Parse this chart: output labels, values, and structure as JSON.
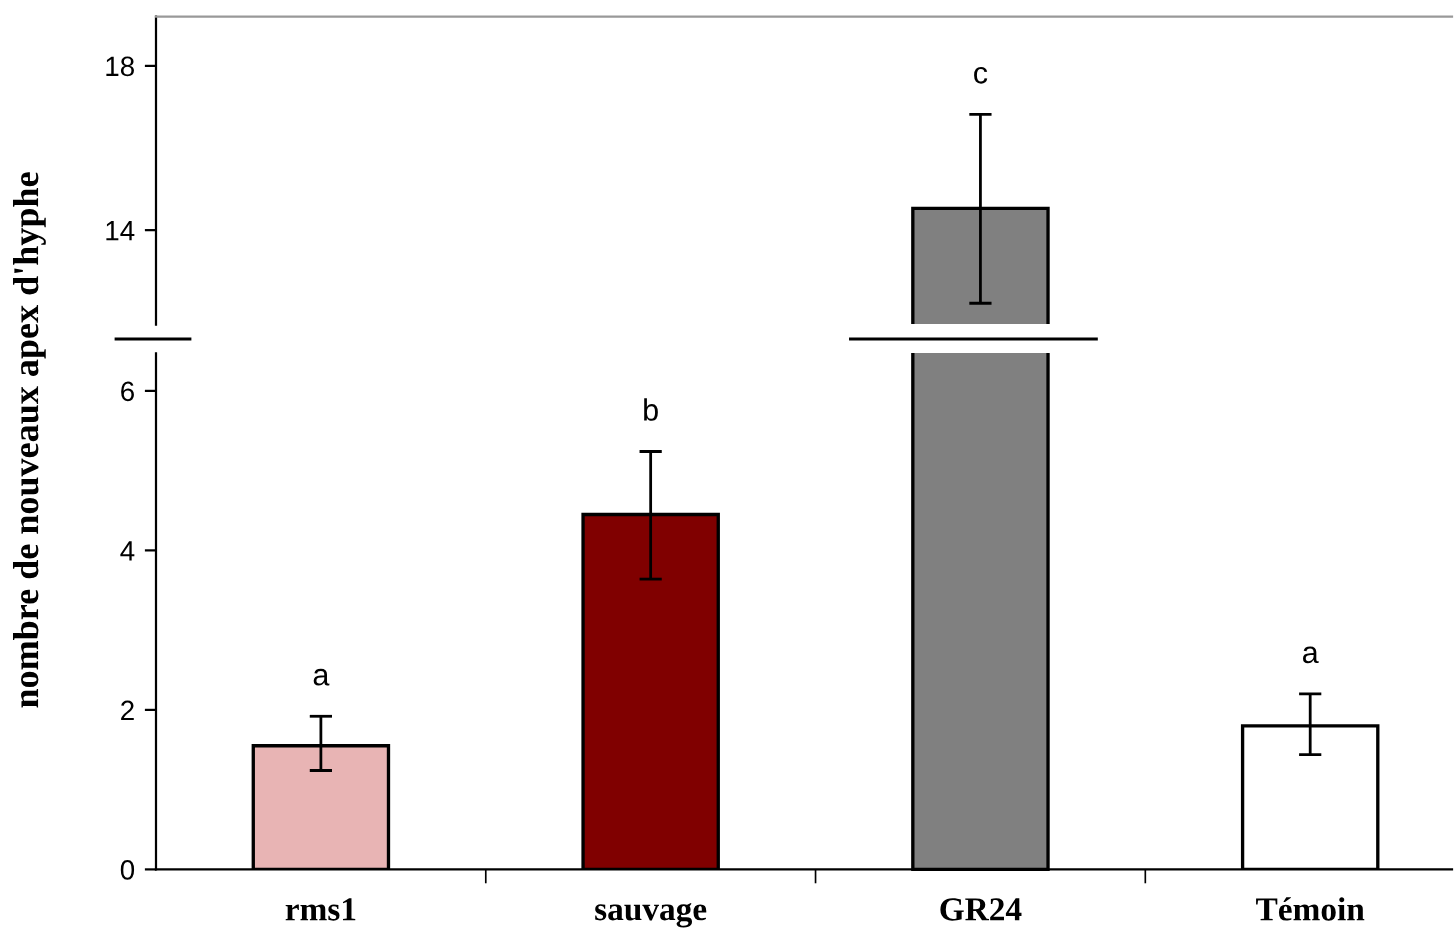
{
  "chart_data": [
    {
      "type": "bar",
      "values": [
        null,
        null,
        14.53,
        null
      ],
      "colors": [
        "#e8b4b4",
        "#800000",
        "#808080",
        "#ffffff"
      ],
      "errors": [
        null,
        null,
        [
          12.22,
          16.82
        ],
        null
      ],
      "ylim": [
        11.7,
        19.2
      ],
      "yticks": [
        14,
        18
      ],
      "tick_labels": "y",
      "annotations": [
        "c"
      ]
    },
    {
      "type": "bar",
      "ylabel": "nombre de nouveaux apex d'hyphe",
      "categories": [
        "rms1",
        "sauvage",
        "GR24",
        "Témoin"
      ],
      "values": [
        1.55,
        4.45,
        null,
        1.8
      ],
      "colors": [
        "#e8b4b4",
        "#800000",
        "#808080",
        "#ffffff"
      ],
      "errors": [
        [
          1.24,
          1.92
        ],
        [
          3.64,
          5.24
        ],
        null,
        [
          1.44,
          2.2
        ]
      ],
      "ylim": [
        0,
        6.47
      ],
      "yticks": [
        0,
        2,
        4,
        6
      ],
      "annotations": [
        "a",
        "b",
        "a"
      ],
      "grid": false,
      "legend": false
    }
  ]
}
